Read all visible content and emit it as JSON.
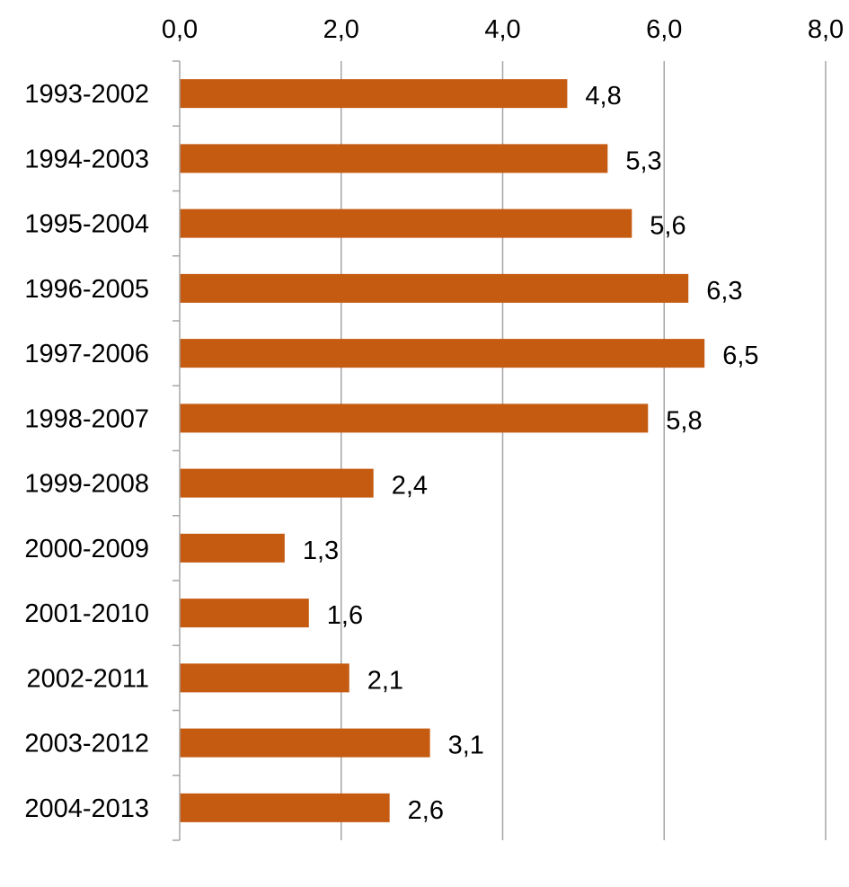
{
  "chart_data": {
    "type": "bar",
    "orientation": "horizontal",
    "title": "",
    "xlabel": "",
    "ylabel": "",
    "categories": [
      "1993-2002",
      "1994-2003",
      "1995-2004",
      "1996-2005",
      "1997-2006",
      "1998-2007",
      "1999-2008",
      "2000-2009",
      "2001-2010",
      "2002-2011",
      "2003-2012",
      "2004-2013"
    ],
    "values": [
      4.8,
      5.3,
      5.6,
      6.3,
      6.5,
      5.8,
      2.4,
      1.3,
      1.6,
      2.1,
      3.1,
      2.6
    ],
    "value_labels": [
      "4,8",
      "5,3",
      "5,6",
      "6,3",
      "6,5",
      "5,8",
      "2,4",
      "1,3",
      "1,6",
      "2,1",
      "3,1",
      "2,6"
    ],
    "xlim": [
      0,
      8
    ],
    "x_ticks": [
      0,
      2,
      4,
      6,
      8
    ],
    "x_tick_labels": [
      "0,0",
      "2,0",
      "4,0",
      "6,0",
      "8,0"
    ],
    "x_axis_position": "top",
    "grid": true,
    "legend": "none",
    "colors": {
      "bar": "#C55A11",
      "grid": "#A6A6A6",
      "axis": "#A6A6A6",
      "text": "#000000"
    }
  }
}
